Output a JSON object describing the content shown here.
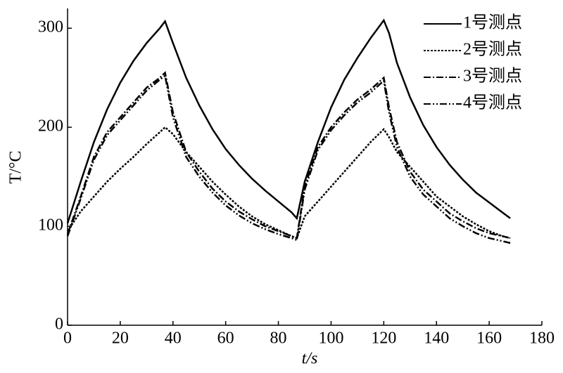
{
  "chart_data": {
    "type": "line",
    "xlabel": "t/s",
    "ylabel": "T/°C",
    "x": [
      0,
      5,
      10,
      15,
      20,
      25,
      30,
      35,
      37,
      40,
      45,
      50,
      55,
      60,
      65,
      70,
      75,
      80,
      85,
      87,
      90,
      95,
      100,
      105,
      110,
      115,
      120,
      122,
      125,
      130,
      135,
      140,
      145,
      150,
      155,
      160,
      165,
      168
    ],
    "series": [
      {
        "name": "1号测点",
        "color": "#000000",
        "values": [
          103,
          145,
          185,
          218,
          245,
          267,
          285,
          300,
          307,
          285,
          250,
          222,
          198,
          178,
          162,
          148,
          136,
          125,
          114,
          108,
          145,
          185,
          220,
          248,
          270,
          290,
          308,
          295,
          265,
          230,
          202,
          180,
          162,
          147,
          134,
          124,
          114,
          108
        ]
      },
      {
        "name": "2号测点",
        "color": "#000000",
        "values": [
          95,
          115,
          130,
          145,
          158,
          170,
          183,
          195,
          200,
          193,
          175,
          160,
          145,
          132,
          120,
          110,
          102,
          96,
          90,
          88,
          110,
          125,
          140,
          155,
          170,
          185,
          198,
          190,
          175,
          160,
          145,
          130,
          120,
          110,
          102,
          95,
          90,
          88
        ]
      },
      {
        "name": "3号测点",
        "color": "#000000",
        "values": [
          92,
          130,
          170,
          195,
          210,
          225,
          240,
          250,
          255,
          215,
          175,
          155,
          138,
          125,
          115,
          107,
          100,
          95,
          90,
          88,
          140,
          180,
          200,
          215,
          228,
          238,
          250,
          220,
          185,
          155,
          137,
          125,
          113,
          105,
          98,
          93,
          90,
          88
        ]
      },
      {
        "name": "4号测点",
        "color": "#000000",
        "values": [
          90,
          128,
          167,
          192,
          207,
          222,
          237,
          248,
          252,
          210,
          170,
          150,
          134,
          121,
          111,
          103,
          97,
          92,
          88,
          86,
          137,
          177,
          197,
          212,
          225,
          235,
          247,
          215,
          180,
          150,
          132,
          120,
          108,
          100,
          93,
          88,
          85,
          83
        ]
      }
    ],
    "xlim": [
      0,
      180
    ],
    "xticks": [
      0,
      20,
      40,
      60,
      80,
      100,
      120,
      140,
      160,
      180
    ],
    "ylim": [
      0,
      320
    ],
    "yticks": [
      0,
      100,
      200,
      300
    ],
    "legend": "upper right"
  }
}
